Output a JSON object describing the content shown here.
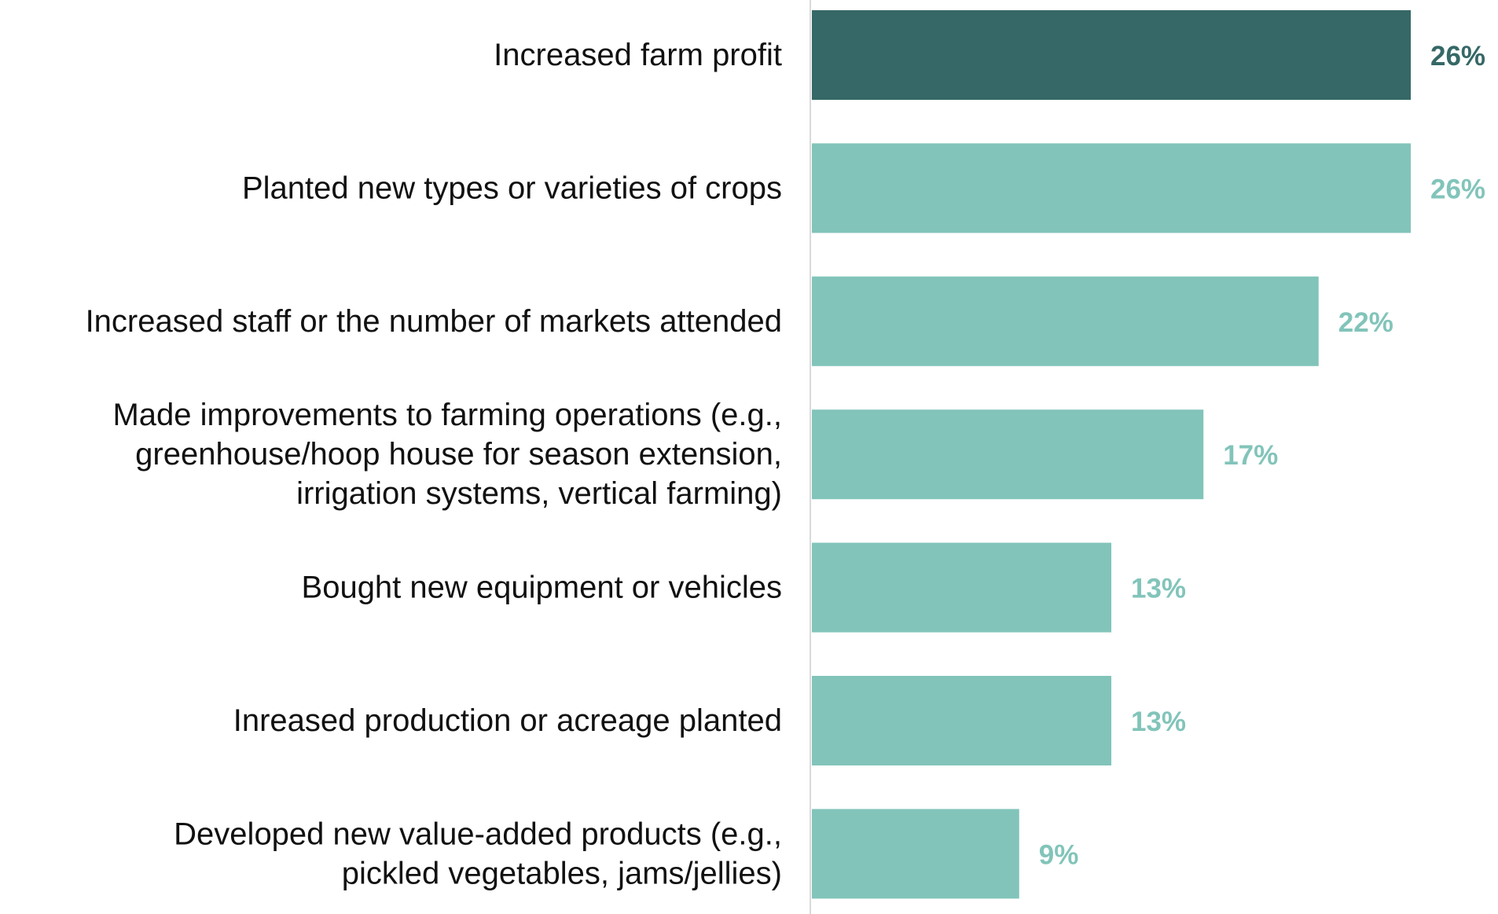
{
  "chart_data": {
    "type": "bar",
    "orientation": "horizontal",
    "categories": [
      [
        "Increased farm profit"
      ],
      [
        "Planted new types or varieties of crops"
      ],
      [
        "Increased staff or the number of markets attended"
      ],
      [
        "Made improvements to farming operations (e.g.,",
        "greenhouse/hoop house for season extension,",
        "irrigation systems, vertical farming)"
      ],
      [
        "Bought new equipment or vehicles"
      ],
      [
        "Inreased production or acreage planted"
      ],
      [
        "Developed new value-added products (e.g.,",
        "pickled vegetables, jams/jellies)"
      ]
    ],
    "values": [
      26,
      26,
      22,
      17,
      13,
      13,
      9
    ],
    "value_labels": [
      "26%",
      "26%",
      "22%",
      "17%",
      "13%",
      "13%",
      "9%"
    ],
    "xlim": [
      0,
      26
    ],
    "title": "",
    "xlabel": "",
    "ylabel": "",
    "grid": false,
    "legend": "none",
    "highlight_index": 0,
    "colors": {
      "highlight_bar": "#356866",
      "highlight_label": "#356866",
      "bar": "#82c4ba",
      "bar_label": "#82c4ba",
      "category_text": "#111111",
      "axis_line": "#d9d9d9"
    }
  }
}
